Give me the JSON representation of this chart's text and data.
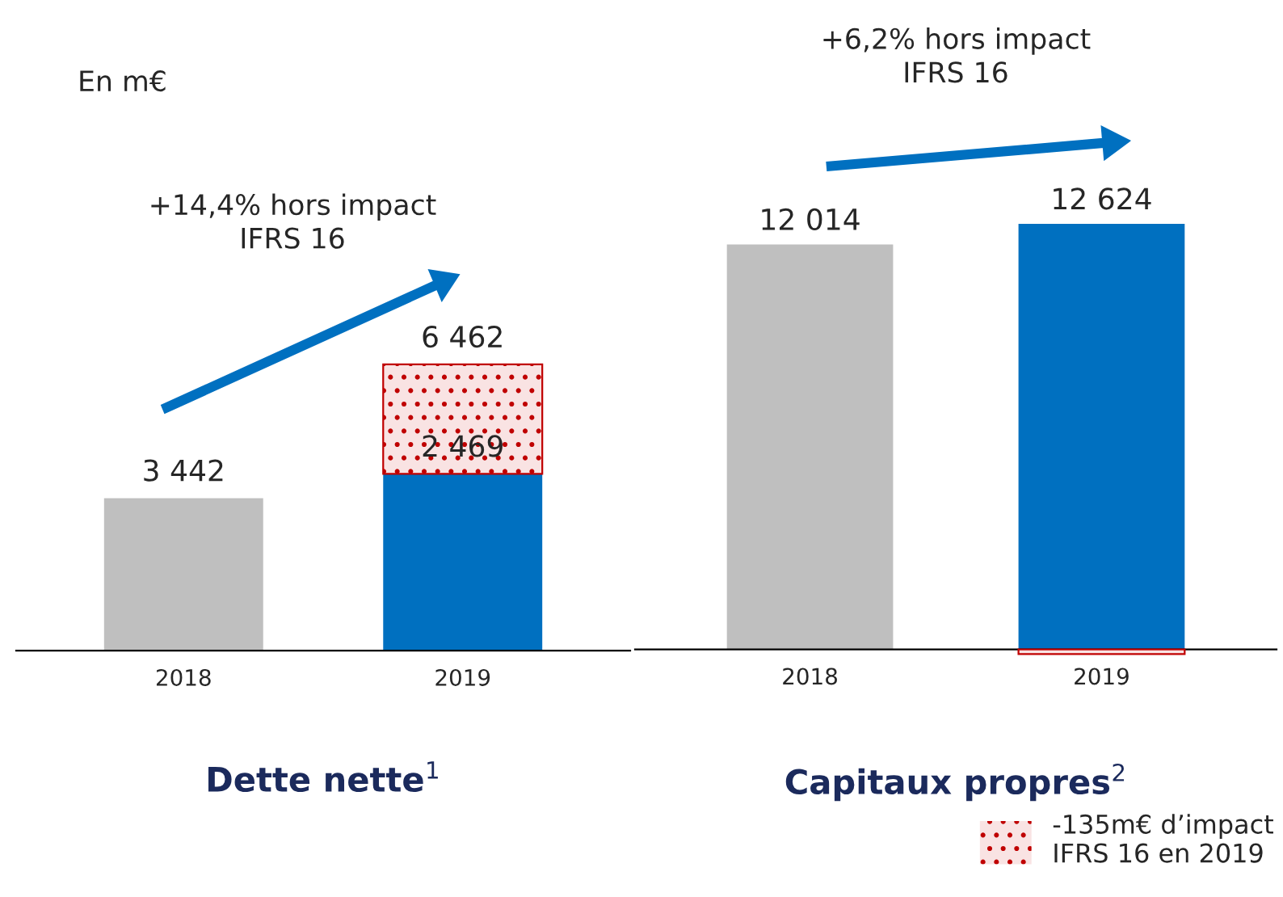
{
  "chart_data": [
    {
      "type": "bar",
      "title": "Dette nette$^{1}$",
      "categories": [
        "2018",
        "2019"
      ],
      "stacked": true,
      "tick_labels": "x",
      "totals": [
        null,
        "6 462"
      ],
      "annotations": [
        "En m€",
        "+14,4% hors impact\nIFRS 16"
      ],
      "series": [
        {
          "colors": [
            "#bfbfbf",
            "#0070c0"
          ],
          "values": [
            3442,
            3993
          ],
          "value_labels": [
            "3 442",
            null
          ]
        },
        {
          "color": "#c00000",
          "values": [
            null,
            2469
          ],
          "value_labels": [
            null,
            "2 469"
          ]
        }
      ]
    },
    {
      "type": "bar",
      "title": "Capitaux propres$^{2}$",
      "categories": [
        "2018",
        "2019"
      ],
      "stacked": true,
      "tick_labels": "x",
      "legend": "bottom right",
      "annotations": [
        "+6,2% hors impact\nIFRS 16"
      ],
      "series": [
        {
          "colors": [
            "#bfbfbf",
            "#0070c0"
          ],
          "values": [
            12014,
            12624
          ],
          "value_labels": [
            "12 014",
            "12 624"
          ]
        },
        {
          "name": "-135m€ d’impact\nIFRS 16 en 2019",
          "color": "#c00000",
          "values": [
            null,
            -135
          ]
        }
      ]
    }
  ]
}
